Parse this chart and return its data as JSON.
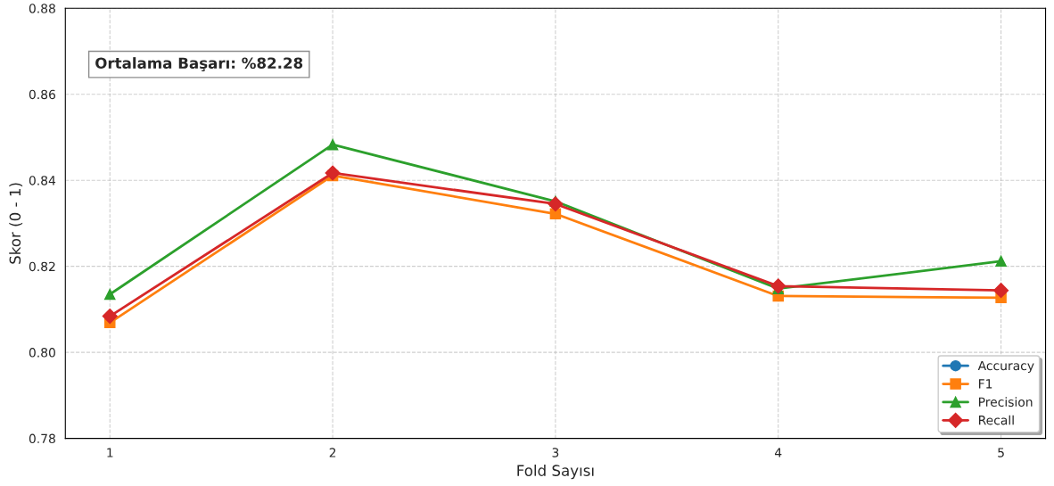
{
  "chart_data": {
    "type": "line",
    "xlabel": "Fold Sayısı",
    "ylabel": "Skor (0 - 1)",
    "x": [
      1,
      2,
      3,
      4,
      5
    ],
    "xlim": [
      0.8,
      5.2
    ],
    "xticks": [
      1,
      2,
      3,
      4,
      5
    ],
    "ylim": [
      0.78,
      0.88
    ],
    "yticks": [
      0.78,
      {
        "value": 0.8,
        "label": "0.80"
      },
      0.82,
      0.84,
      0.86,
      0.88
    ],
    "grid": true,
    "legend": "bottom right",
    "line_style": "solid",
    "annotations": [
      "Ortalama Başarı: %82.28"
    ],
    "series": [
      {
        "name": "Accuracy",
        "color": "#1f77b4",
        "marker": "circle",
        "values": [
          null,
          null,
          null,
          null,
          null
        ]
      },
      {
        "name": "F1",
        "color": "#ff7f0e",
        "marker": "square",
        "values": [
          0.8069,
          0.8411,
          0.8322,
          0.8131,
          0.8127
        ]
      },
      {
        "name": "Precision",
        "color": "#2ca02c",
        "marker": "triangle",
        "values": [
          0.8135,
          0.8483,
          0.8351,
          0.8148,
          0.8212
        ]
      },
      {
        "name": "Recall",
        "color": "#d62728",
        "marker": "diamond",
        "values": [
          0.8084,
          0.8417,
          0.8345,
          0.8154,
          0.8144
        ]
      }
    ]
  }
}
